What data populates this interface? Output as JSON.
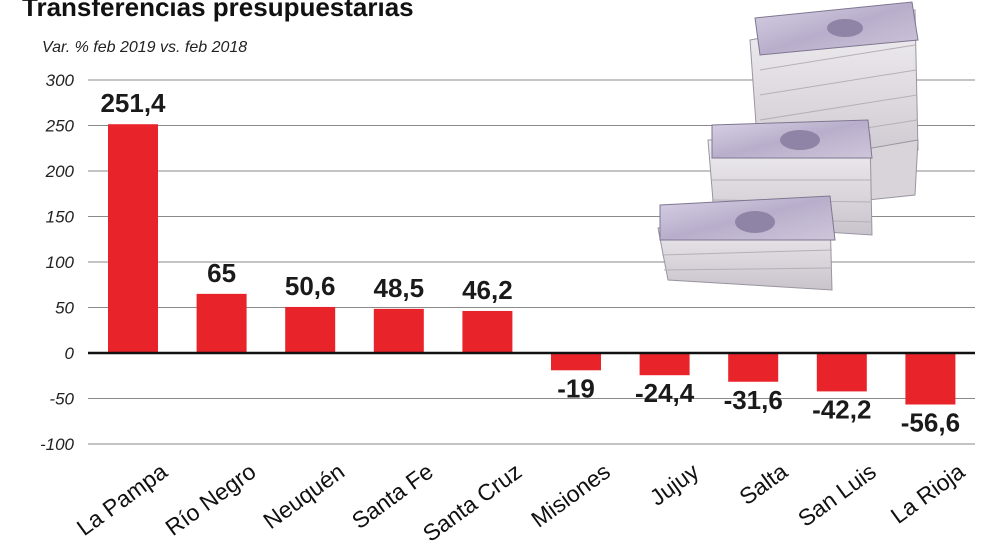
{
  "chart_data": {
    "type": "bar",
    "title": "Transferencias presupuestarias",
    "subtitle": "Var. % feb 2019 vs. feb 2018",
    "categories": [
      "La Pampa",
      "Río Negro",
      "Neuquén",
      "Santa Fe",
      "Santa Cruz",
      "Misiones",
      "Jujuy",
      "Salta",
      "San Luis",
      "La Rioja"
    ],
    "values": [
      251.4,
      65,
      50.6,
      48.5,
      46.2,
      -19,
      -24.4,
      -31.6,
      -42.2,
      -56.6
    ],
    "value_labels": [
      "251,4",
      "65",
      "50,6",
      "48,5",
      "46,2",
      "-19",
      "-24,4",
      "-31,6",
      "-42,2",
      "-56,6"
    ],
    "yticks": [
      300,
      250,
      200,
      150,
      100,
      50,
      0,
      -50,
      -100
    ],
    "ylim": [
      -100,
      300
    ],
    "grid": true,
    "bar_color": "#e8232a"
  }
}
